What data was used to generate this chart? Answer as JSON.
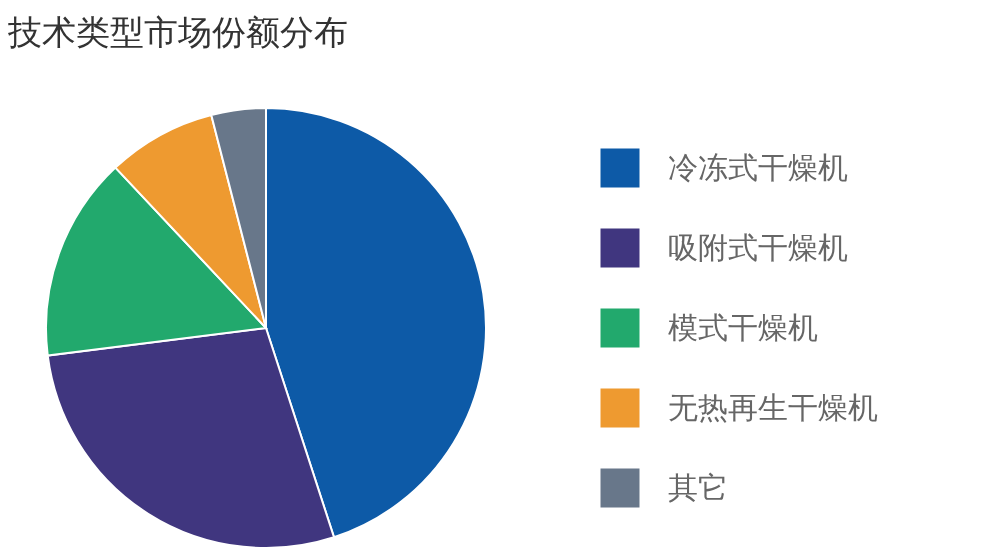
{
  "chart_data": {
    "type": "pie",
    "title": "技术类型市场份额分布",
    "categories": [
      "冷冻式干燥机",
      "吸附式干燥机",
      "模式干燥机",
      "无热再生干燥机",
      "其它"
    ],
    "values": [
      45,
      28,
      15,
      8,
      4
    ],
    "colors": [
      "#0d5aa7",
      "#40367f",
      "#22a96d",
      "#ee9a30",
      "#68778a"
    ],
    "legend": "right"
  }
}
